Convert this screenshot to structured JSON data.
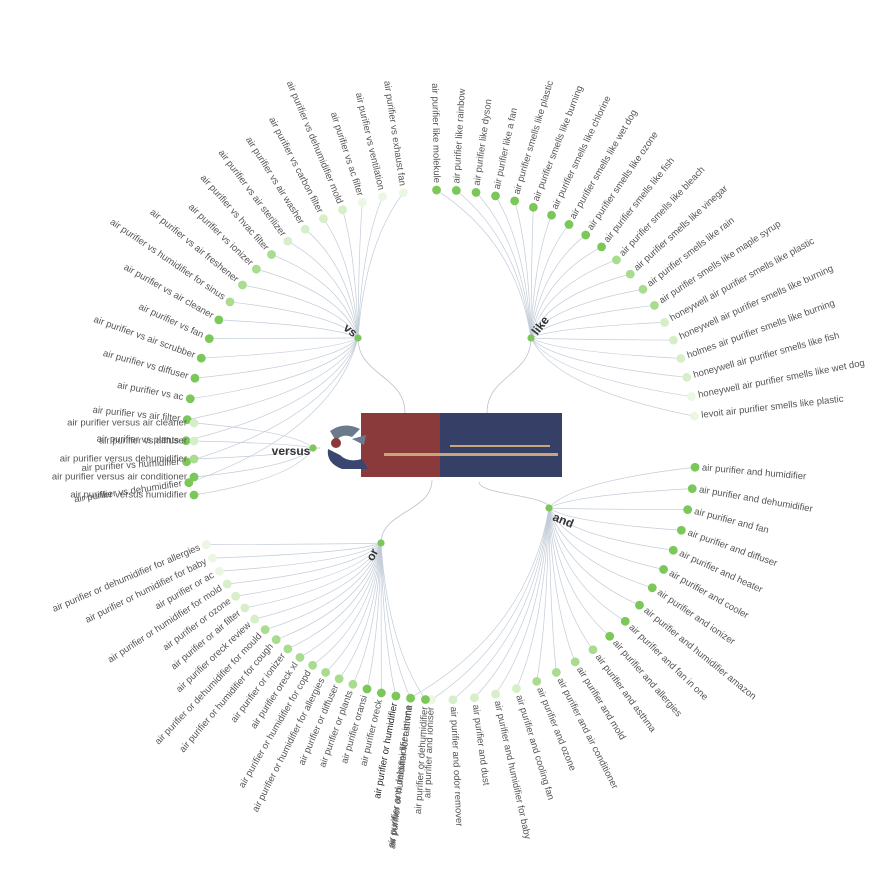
{
  "center": {
    "logo_text": ""
  },
  "colors": {
    "node_strong": "#7cc75a",
    "node_mid": "#a9dc8e",
    "node_light": "#d6efc8",
    "node_faint": "#ebf6e3",
    "link": "#c3ccd8",
    "label": "#555555",
    "logo_red": "#8a3a3a",
    "logo_navy": "#363f66",
    "logo_gold": "#c7a77a"
  },
  "branches": [
    {
      "key": "vs",
      "label": "vs",
      "leaves": [
        {
          "text": "air purifier vs dehumidifier",
          "shade": "strong"
        },
        {
          "text": "air purifier vs humidifier",
          "shade": "strong"
        },
        {
          "text": "air purifier vs plants",
          "shade": "strong"
        },
        {
          "text": "air purifier vs air filter",
          "shade": "strong"
        },
        {
          "text": "air purifier vs ac",
          "shade": "strong"
        },
        {
          "text": "air purifier vs diffuser",
          "shade": "strong"
        },
        {
          "text": "air purifier vs air scrubber",
          "shade": "strong"
        },
        {
          "text": "air purifier vs fan",
          "shade": "strong"
        },
        {
          "text": "air purifier vs air cleaner",
          "shade": "strong"
        },
        {
          "text": "air purifier vs humidifier for sinus",
          "shade": "mid"
        },
        {
          "text": "air purifier vs air freshener",
          "shade": "mid"
        },
        {
          "text": "air purifier vs ionizer",
          "shade": "mid"
        },
        {
          "text": "air purifier vs hvac filter",
          "shade": "mid"
        },
        {
          "text": "air purifier vs air sterilizer",
          "shade": "light"
        },
        {
          "text": "air purifier vs air washer",
          "shade": "light"
        },
        {
          "text": "air purifier vs carbon filter",
          "shade": "light"
        },
        {
          "text": "air purifier vs dehumidifier mold",
          "shade": "light"
        },
        {
          "text": "air purifier vs ac filter",
          "shade": "faint"
        },
        {
          "text": "air purifier vs ventilation",
          "shade": "faint"
        },
        {
          "text": "air purifier vs exhaust fan",
          "shade": "faint"
        }
      ]
    },
    {
      "key": "like",
      "label": "like",
      "leaves": [
        {
          "text": "air purifier like molekule",
          "shade": "strong"
        },
        {
          "text": "air purifier like rainbow",
          "shade": "strong"
        },
        {
          "text": "air purifier like dyson",
          "shade": "strong"
        },
        {
          "text": "air purifier like a fan",
          "shade": "strong"
        },
        {
          "text": "air purifier smells like plastic",
          "shade": "strong"
        },
        {
          "text": "air purifier smells like burning",
          "shade": "strong"
        },
        {
          "text": "air purifier smells like chlorine",
          "shade": "strong"
        },
        {
          "text": "air purifier smells like wet dog",
          "shade": "strong"
        },
        {
          "text": "air purifier smells like ozone",
          "shade": "strong"
        },
        {
          "text": "air purifier smells like fish",
          "shade": "strong"
        },
        {
          "text": "air purifier smells like bleach",
          "shade": "mid"
        },
        {
          "text": "air purifier smells like vinegar",
          "shade": "mid"
        },
        {
          "text": "air purifier smells like rain",
          "shade": "mid"
        },
        {
          "text": "air purifier smells like maple syrup",
          "shade": "mid"
        },
        {
          "text": "honeywell air purifier smells like plastic",
          "shade": "light"
        },
        {
          "text": "honeywell air purifier smells like burning",
          "shade": "light"
        },
        {
          "text": "holmes air purifier smells like burning",
          "shade": "light"
        },
        {
          "text": "honeywell air purifier smells like fish",
          "shade": "light"
        },
        {
          "text": "honeywell air purifier smells like wet dog",
          "shade": "faint"
        },
        {
          "text": "levoit air purifier smells like plastic",
          "shade": "faint"
        }
      ]
    },
    {
      "key": "versus",
      "label": "versus",
      "leaves": [
        {
          "text": "air purifier versus air cleaner",
          "shade": "light"
        },
        {
          "text": "air purifier vs diffuser",
          "shade": "light"
        },
        {
          "text": "air purifier versus dehumidifier",
          "shade": "mid"
        },
        {
          "text": "air purifier versus air conditioner",
          "shade": "strong"
        },
        {
          "text": "air purifier versus humidifier",
          "shade": "strong"
        }
      ]
    },
    {
      "key": "and",
      "label": "and",
      "leaves": [
        {
          "text": "air purifier and humidifier",
          "shade": "strong"
        },
        {
          "text": "air purifier and dehumidifier",
          "shade": "strong"
        },
        {
          "text": "air purifier and fan",
          "shade": "strong"
        },
        {
          "text": "air purifier and diffuser",
          "shade": "strong"
        },
        {
          "text": "air purifier and heater",
          "shade": "strong"
        },
        {
          "text": "air purifier and cooler",
          "shade": "strong"
        },
        {
          "text": "air purifier and ionizer",
          "shade": "strong"
        },
        {
          "text": "air purifier and humidifier amazon",
          "shade": "strong"
        },
        {
          "text": "air purifier and fan in one",
          "shade": "strong"
        },
        {
          "text": "air purifier and allergies",
          "shade": "strong"
        },
        {
          "text": "air purifier and asthma",
          "shade": "mid"
        },
        {
          "text": "air purifier and mold",
          "shade": "mid"
        },
        {
          "text": "air purifier and air conditioner",
          "shade": "mid"
        },
        {
          "text": "air purifier and ozone",
          "shade": "mid"
        },
        {
          "text": "air purifier and cooling fan",
          "shade": "light"
        },
        {
          "text": "air purifier and humidifier for baby",
          "shade": "light"
        },
        {
          "text": "air purifier and dust",
          "shade": "light"
        },
        {
          "text": "air purifier and odor remover",
          "shade": "light"
        },
        {
          "text": "air purifier and ioniser",
          "shade": "faint"
        },
        {
          "text": "air purifier and dehumidifier in one",
          "shade": "faint"
        }
      ]
    },
    {
      "key": "or",
      "label": "or",
      "leaves": [
        {
          "text": "air purifier or dehumidifier for allergies",
          "shade": "faint"
        },
        {
          "text": "air purifier or humidifier for baby",
          "shade": "faint"
        },
        {
          "text": "air purifier or ac",
          "shade": "faint"
        },
        {
          "text": "air purifier or humidifier for mold",
          "shade": "light"
        },
        {
          "text": "air purifier or ozone",
          "shade": "light"
        },
        {
          "text": "air purifier or air filter",
          "shade": "light"
        },
        {
          "text": "air purifier oreck review",
          "shade": "light"
        },
        {
          "text": "air purifier or dehumidifier for mould",
          "shade": "mid"
        },
        {
          "text": "air purifier or humidifier for cough",
          "shade": "mid"
        },
        {
          "text": "air purifier or ionizer",
          "shade": "mid"
        },
        {
          "text": "air purifier oreck xl",
          "shade": "mid"
        },
        {
          "text": "air purifier or humidifier for copd",
          "shade": "mid"
        },
        {
          "text": "air purifier or humidifier for allergies",
          "shade": "mid"
        },
        {
          "text": "air purifier or diffuser",
          "shade": "mid"
        },
        {
          "text": "air purifier or plants",
          "shade": "mid"
        },
        {
          "text": "air purifier oransi",
          "shade": "strong"
        },
        {
          "text": "air purifier oreck",
          "shade": "strong"
        },
        {
          "text": "air purifier or humidifier",
          "shade": "strong",
          "emphasis": true
        },
        {
          "text": "air purifier or humidifier for asthma",
          "shade": "strong"
        },
        {
          "text": "air purifier or dehumidifier",
          "shade": "strong"
        }
      ]
    }
  ]
}
